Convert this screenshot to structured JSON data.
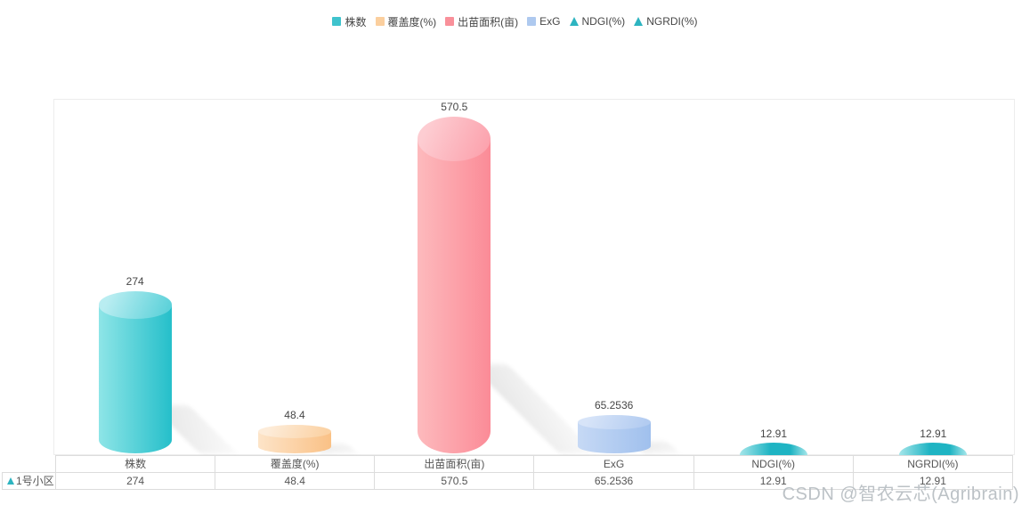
{
  "legend": {
    "items": [
      {
        "label": "株数",
        "marker": "square",
        "color": "#3fc3cd"
      },
      {
        "label": "覆盖度(%)",
        "marker": "square",
        "color": "#fbcf9e"
      },
      {
        "label": "出苗面积(亩)",
        "marker": "square",
        "color": "#f9909a"
      },
      {
        "label": "ExG",
        "marker": "square",
        "color": "#aec9ef"
      },
      {
        "label": "NDGI(%)",
        "marker": "triangle",
        "color": "#2db4c0"
      },
      {
        "label": "NGRDI(%)",
        "marker": "triangle",
        "color": "#2db4c0"
      }
    ]
  },
  "chart_data": {
    "type": "bar",
    "variant": "3d-cylinder-pictorial",
    "title": "",
    "xlabel": "",
    "ylabel": "",
    "grid": false,
    "y_axis_visible": false,
    "legend_position": "top",
    "categories": [
      "株数",
      "覆盖度(%)",
      "出苗面积(亩)",
      "ExG",
      "NDGI(%)",
      "NGRDI(%)"
    ],
    "series": [
      {
        "name": "1号小区",
        "values": [
          274,
          48.4,
          570.5,
          65.2536,
          12.91,
          12.91
        ]
      }
    ],
    "value_labels": [
      "274",
      "48.4",
      "570.5",
      "65.2536",
      "12.91",
      "12.91"
    ],
    "ylim": [
      0,
      600
    ],
    "bar_colors": [
      {
        "body_light": "#8ee5e7",
        "body_dark": "#25bfca",
        "cap_light": "#b9edf1",
        "cap_dark": "#5ed2da"
      },
      {
        "body_light": "#fde4c8",
        "body_dark": "#fac186",
        "cap_light": "#fdecd9",
        "cap_dark": "#fbd2a4"
      },
      {
        "body_light": "#fdbabd",
        "body_dark": "#fb8b97",
        "cap_light": "#fdcdd2",
        "cap_dark": "#fca3ae"
      },
      {
        "body_light": "#c6d9f5",
        "body_dark": "#a0c0ed",
        "cap_light": "#d7e4f8",
        "cap_dark": "#b3ccf1"
      },
      {
        "body_light": "#a5e6ea",
        "body_dark": "#1fb4c3",
        "cap_light": "#a5e6ea",
        "cap_dark": "#1fb4c3"
      },
      {
        "body_light": "#a5e6ea",
        "body_dark": "#1fb4c3",
        "cap_light": "#a5e6ea",
        "cap_dark": "#1fb4c3"
      }
    ]
  },
  "table": {
    "columns": [
      "株数",
      "覆盖度(%)",
      "出苗面积(亩)",
      "ExG",
      "NDGI(%)",
      "NGRDI(%)"
    ],
    "rows": [
      {
        "label": "1号小区",
        "marker_color": "#2db4c0",
        "values": [
          "274",
          "48.4",
          "570.5",
          "65.2536",
          "12.91",
          "12.91"
        ]
      }
    ]
  },
  "watermark": {
    "text": "CSDN @智农云芯(Agribrain)",
    "color": "#b9bfc4"
  }
}
